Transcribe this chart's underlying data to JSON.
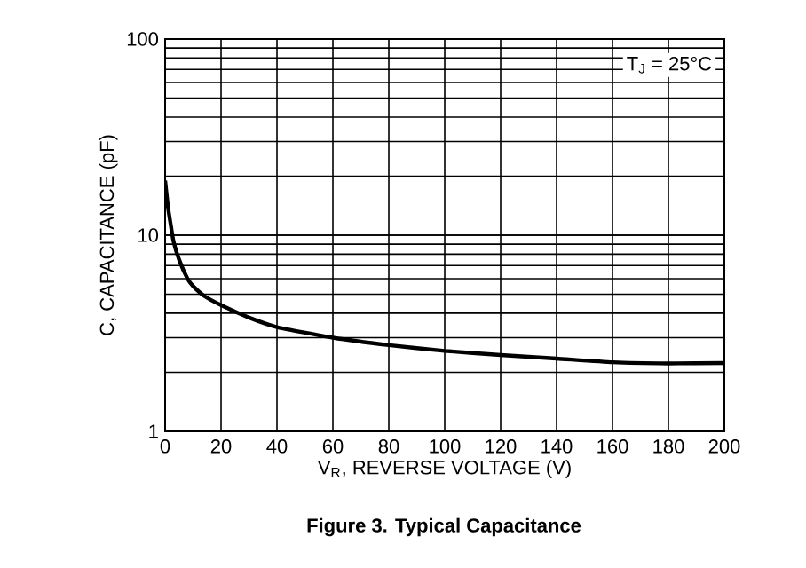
{
  "chart_data": {
    "type": "line",
    "title": "Figure 3. Typical Capacitance",
    "xlabel": "V$_{R}$, REVERSE VOLTAGE (V)",
    "ylabel": "C, CAPACITANCE (pF)",
    "annotations": [
      "T$_{J}$ = 25°C"
    ],
    "x": [
      0,
      1,
      2,
      3,
      5,
      8,
      10,
      14,
      20,
      30,
      40,
      60,
      80,
      100,
      120,
      140,
      160,
      180,
      200
    ],
    "series": [
      {
        "color": "#000000",
        "values": [
          19,
          14,
          11.3,
          9.3,
          7.5,
          6.0,
          5.5,
          4.9,
          4.4,
          3.8,
          3.4,
          3.0,
          2.75,
          2.57,
          2.45,
          2.35,
          2.25,
          2.22,
          2.23
        ]
      }
    ],
    "log": "y",
    "grid": true,
    "marker": "none",
    "line_style": "solid",
    "xlim": [
      0,
      200
    ],
    "ylim": [
      1,
      100
    ],
    "xticks": [
      0,
      20,
      40,
      60,
      80,
      100,
      120,
      140,
      160,
      180,
      200
    ],
    "yticks": [
      1,
      10,
      100
    ]
  }
}
